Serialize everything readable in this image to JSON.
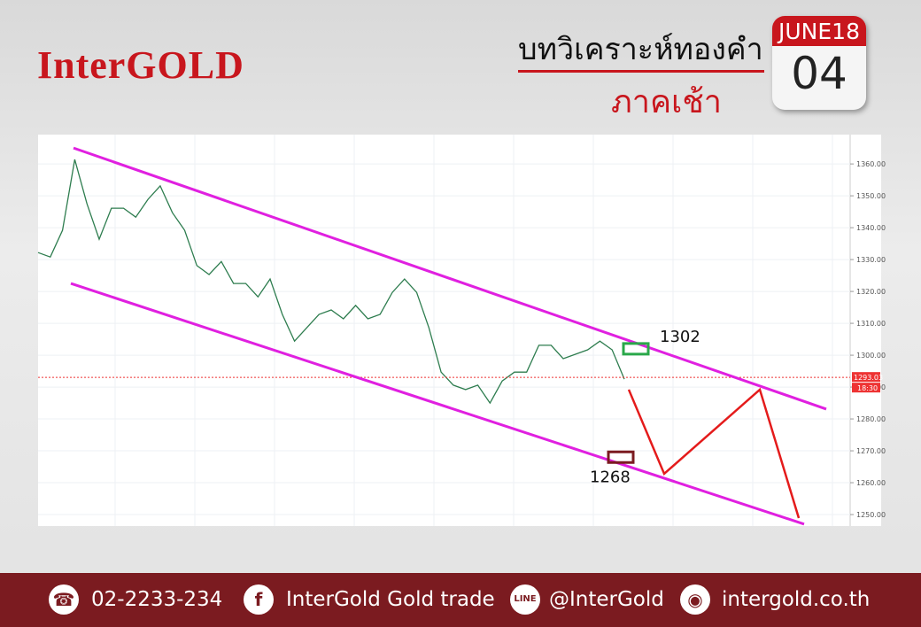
{
  "header": {
    "brand": "InterGOLD",
    "title": "บทวิเคราะห์ทองคำ",
    "subtitle": "ภาคเช้า",
    "month": "JUNE18",
    "day": "04"
  },
  "footer": {
    "phone": "02-2233-234",
    "facebook": "InterGold Gold trade",
    "line": "@InterGold",
    "website": "intergold.co.th"
  },
  "chart_data": {
    "type": "line",
    "values": [
      1332.2,
      1330.8,
      1339.2,
      1361.4,
      1347.5,
      1336.4,
      1346.1,
      1346.1,
      1343.3,
      1348.9,
      1353.1,
      1344.7,
      1339.2,
      1328.1,
      1325.3,
      1329.4,
      1322.5,
      1322.5,
      1318.3,
      1323.9,
      1312.8,
      1304.4,
      1308.6,
      1312.8,
      1314.2,
      1311.4,
      1315.6,
      1311.4,
      1312.8,
      1319.7,
      1323.9,
      1319.7,
      1308.6,
      1294.7,
      1290.6,
      1289.2,
      1290.6,
      1285,
      1291.9,
      1294.7,
      1294.7,
      1303.1,
      1303.1,
      1298.9,
      1300.3,
      1301.7,
      1304.4,
      1301.7,
      1292.5
    ],
    "color": "#2e7d4f",
    "ylim": [
      1246.4,
      1369.2
    ],
    "yticks": [
      {
        "value": 1250,
        "label": "1250.00"
      },
      {
        "value": 1260,
        "label": "1260.00"
      },
      {
        "value": 1270,
        "label": "1270.00"
      },
      {
        "value": 1280,
        "label": "1280.00"
      },
      {
        "value": 1290,
        "label": "1290.00"
      },
      {
        "value": 1300,
        "label": "1300.00"
      },
      {
        "value": 1310,
        "label": "1310.00"
      },
      {
        "value": 1320,
        "label": "1320.00"
      },
      {
        "value": 1330,
        "label": "1330.00"
      },
      {
        "value": 1340,
        "label": "1340.00"
      },
      {
        "value": 1350,
        "label": "1350.00"
      },
      {
        "value": 1360,
        "label": "1360.00"
      }
    ],
    "grid": true,
    "last_price": {
      "value": 1293.03,
      "label": "1293.03"
    },
    "last_time": "18:30",
    "channel": {
      "color": "#e020e0",
      "upper": [
        1365,
        1283.1
      ],
      "lower": [
        1322.5,
        1247
      ]
    },
    "forecast": {
      "color": "#e41b1b",
      "values": [
        1289.2,
        1262.8,
        1289.2,
        1248.9
      ]
    },
    "annotations": [
      1302,
      1268
    ]
  }
}
